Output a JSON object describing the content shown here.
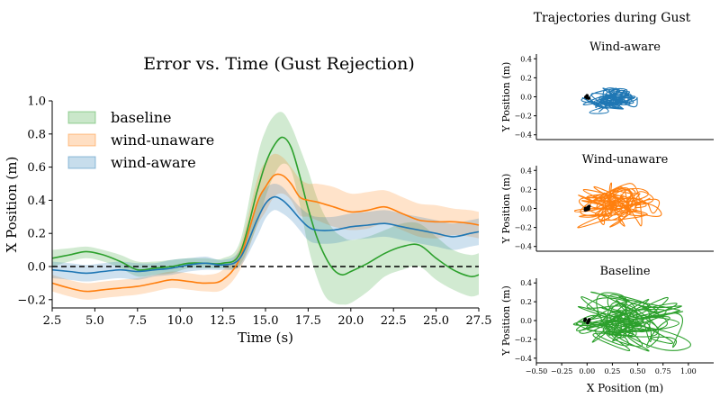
{
  "colors": {
    "baseline": "#2ca02c",
    "wind_unaware": "#ff7f0e",
    "wind_aware": "#1f77b4"
  },
  "chart_data": [
    {
      "type": "line",
      "title": "Error vs. Time (Gust Rejection)",
      "xlabel": "Time (s)",
      "ylabel": "X Position (m)",
      "xlim": [
        2.5,
        27.5
      ],
      "ylim": [
        -0.25,
        1.0
      ],
      "xticks": [
        2.5,
        5.0,
        7.5,
        10.0,
        12.5,
        15.0,
        17.5,
        20.0,
        22.5,
        25.0,
        27.5
      ],
      "xtick_labels": [
        "2.5",
        "5.0",
        "7.5",
        "10.0",
        "12.5",
        "15.0",
        "17.5",
        "20.0",
        "22.5",
        "25.0",
        "27.5"
      ],
      "yticks": [
        -0.2,
        0.0,
        0.2,
        0.4,
        0.6,
        0.8,
        1.0
      ],
      "ytick_labels": [
        "−0.2",
        "0.0",
        "0.2",
        "0.4",
        "0.6",
        "0.8",
        "1.0"
      ],
      "reference_line": 0.0,
      "legend": [
        "baseline",
        "wind-unaware",
        "wind-aware"
      ],
      "legend_position": "upper-left",
      "series": [
        {
          "name": "baseline",
          "x": [
            2.5,
            3.5,
            4.5,
            5.5,
            6.5,
            7.5,
            8.5,
            9.5,
            10.5,
            11.5,
            12.5,
            13.5,
            14.5,
            15.0,
            15.5,
            16.0,
            16.5,
            17.0,
            17.5,
            18.0,
            18.5,
            19.0,
            19.5,
            20.0,
            21.0,
            22.0,
            23.0,
            24.0,
            25.0,
            26.0,
            27.0,
            27.5
          ],
          "values": [
            0.05,
            0.07,
            0.09,
            0.07,
            0.03,
            -0.02,
            -0.01,
            0.0,
            0.02,
            0.02,
            0.02,
            0.08,
            0.45,
            0.62,
            0.73,
            0.78,
            0.72,
            0.55,
            0.35,
            0.18,
            0.06,
            -0.02,
            -0.05,
            -0.03,
            0.02,
            0.08,
            0.12,
            0.13,
            0.05,
            -0.02,
            -0.06,
            -0.05
          ],
          "upper": [
            0.1,
            0.11,
            0.12,
            0.1,
            0.07,
            0.03,
            0.03,
            0.04,
            0.05,
            0.05,
            0.05,
            0.15,
            0.65,
            0.82,
            0.91,
            0.93,
            0.85,
            0.72,
            0.58,
            0.42,
            0.3,
            0.22,
            0.18,
            0.16,
            0.18,
            0.22,
            0.26,
            0.26,
            0.18,
            0.1,
            0.07,
            0.08
          ],
          "lower": [
            0.0,
            0.03,
            0.05,
            0.03,
            -0.01,
            -0.06,
            -0.05,
            -0.04,
            -0.01,
            -0.01,
            -0.01,
            0.01,
            0.25,
            0.42,
            0.55,
            0.62,
            0.58,
            0.38,
            0.12,
            -0.06,
            -0.18,
            -0.22,
            -0.23,
            -0.22,
            -0.15,
            -0.06,
            -0.02,
            0.0,
            -0.08,
            -0.14,
            -0.18,
            -0.17
          ]
        },
        {
          "name": "wind-unaware",
          "x": [
            2.5,
            3.5,
            4.5,
            5.5,
            6.5,
            7.5,
            8.5,
            9.5,
            10.5,
            11.5,
            12.5,
            13.5,
            14.5,
            15.0,
            15.5,
            16.0,
            16.5,
            17.0,
            17.5,
            18.0,
            19.0,
            20.0,
            21.0,
            22.0,
            23.0,
            24.0,
            25.0,
            26.0,
            27.0,
            27.5
          ],
          "values": [
            -0.1,
            -0.13,
            -0.15,
            -0.14,
            -0.13,
            -0.12,
            -0.1,
            -0.08,
            -0.09,
            -0.1,
            -0.08,
            0.05,
            0.38,
            0.48,
            0.55,
            0.55,
            0.5,
            0.42,
            0.4,
            0.39,
            0.36,
            0.33,
            0.34,
            0.36,
            0.32,
            0.28,
            0.27,
            0.27,
            0.26,
            0.25
          ],
          "upper": [
            -0.05,
            -0.08,
            -0.1,
            -0.09,
            -0.08,
            -0.07,
            -0.05,
            -0.03,
            -0.04,
            -0.05,
            -0.02,
            0.12,
            0.52,
            0.63,
            0.68,
            0.66,
            0.6,
            0.53,
            0.5,
            0.5,
            0.48,
            0.44,
            0.45,
            0.46,
            0.42,
            0.38,
            0.37,
            0.35,
            0.34,
            0.33
          ],
          "lower": [
            -0.15,
            -0.18,
            -0.2,
            -0.19,
            -0.18,
            -0.17,
            -0.15,
            -0.13,
            -0.14,
            -0.15,
            -0.14,
            -0.02,
            0.24,
            0.33,
            0.42,
            0.44,
            0.4,
            0.31,
            0.3,
            0.28,
            0.24,
            0.22,
            0.23,
            0.26,
            0.22,
            0.18,
            0.17,
            0.19,
            0.18,
            0.17
          ]
        },
        {
          "name": "wind-aware",
          "x": [
            2.5,
            3.5,
            4.5,
            5.5,
            6.5,
            7.5,
            8.5,
            9.5,
            10.5,
            11.5,
            12.5,
            13.5,
            14.5,
            15.0,
            15.5,
            16.0,
            16.5,
            17.0,
            17.5,
            18.0,
            19.0,
            20.0,
            21.0,
            22.0,
            23.0,
            24.0,
            25.0,
            26.0,
            27.0,
            27.5
          ],
          "values": [
            -0.02,
            -0.03,
            -0.04,
            -0.03,
            -0.02,
            -0.03,
            -0.02,
            -0.01,
            0.01,
            0.02,
            0.01,
            0.05,
            0.28,
            0.38,
            0.42,
            0.4,
            0.35,
            0.29,
            0.24,
            0.22,
            0.22,
            0.24,
            0.25,
            0.26,
            0.24,
            0.22,
            0.2,
            0.18,
            0.2,
            0.21
          ],
          "upper": [
            0.03,
            0.02,
            0.01,
            0.02,
            0.03,
            0.02,
            0.02,
            0.04,
            0.05,
            0.06,
            0.04,
            0.1,
            0.38,
            0.47,
            0.5,
            0.48,
            0.42,
            0.36,
            0.32,
            0.3,
            0.3,
            0.32,
            0.33,
            0.34,
            0.32,
            0.3,
            0.28,
            0.26,
            0.28,
            0.29
          ],
          "lower": [
            -0.07,
            -0.08,
            -0.09,
            -0.08,
            -0.07,
            -0.08,
            -0.06,
            -0.05,
            -0.03,
            -0.02,
            -0.02,
            0.0,
            0.18,
            0.29,
            0.34,
            0.32,
            0.28,
            0.22,
            0.16,
            0.14,
            0.14,
            0.16,
            0.17,
            0.18,
            0.16,
            0.14,
            0.12,
            0.1,
            0.12,
            0.13
          ]
        }
      ]
    },
    {
      "type": "scatter",
      "suptitle": "Trajectories during Gust",
      "title": "Wind-aware",
      "ylabel": "Y Position (m)",
      "xlim": [
        -0.5,
        1.25
      ],
      "ylim": [
        -0.45,
        0.45
      ],
      "yticks": [
        -0.4,
        -0.2,
        0.0,
        0.2,
        0.4
      ],
      "ytick_labels": [
        "−0.4",
        "−0.2",
        "0.0",
        "0.2",
        "0.4"
      ],
      "series": [
        {
          "name": "wind-aware",
          "center": [
            0.2,
            -0.02
          ],
          "x_spread": [
            -0.15,
            0.55
          ],
          "y_spread": [
            -0.18,
            0.12
          ]
        }
      ]
    },
    {
      "type": "scatter",
      "title": "Wind-unaware",
      "ylabel": "Y Position (m)",
      "xlim": [
        -0.5,
        1.25
      ],
      "ylim": [
        -0.45,
        0.45
      ],
      "yticks": [
        -0.4,
        -0.2,
        0.0,
        0.2,
        0.4
      ],
      "ytick_labels": [
        "−0.4",
        "−0.2",
        "0.0",
        "0.2",
        "0.4"
      ],
      "series": [
        {
          "name": "wind-unaware",
          "center": [
            0.35,
            0.0
          ],
          "x_spread": [
            -0.22,
            0.8
          ],
          "y_spread": [
            -0.25,
            0.3
          ]
        }
      ]
    },
    {
      "type": "scatter",
      "title": "Baseline",
      "xlabel": "X Position (m)",
      "ylabel": "Y Position (m)",
      "xlim": [
        -0.5,
        1.25
      ],
      "ylim": [
        -0.45,
        0.45
      ],
      "xticks": [
        -0.5,
        -0.25,
        0.0,
        0.25,
        0.5,
        0.75,
        1.0
      ],
      "xtick_labels": [
        "−0.50",
        "−0.25",
        "0.00",
        "0.25",
        "0.50",
        "0.75",
        "1.00"
      ],
      "yticks": [
        -0.4,
        -0.2,
        0.0,
        0.2,
        0.4
      ],
      "ytick_labels": [
        "−0.4",
        "−0.2",
        "0.0",
        "0.2",
        "0.4"
      ],
      "series": [
        {
          "name": "baseline",
          "center": [
            0.3,
            0.0
          ],
          "x_spread": [
            -0.25,
            1.15
          ],
          "y_spread": [
            -0.4,
            0.35
          ]
        }
      ]
    }
  ]
}
